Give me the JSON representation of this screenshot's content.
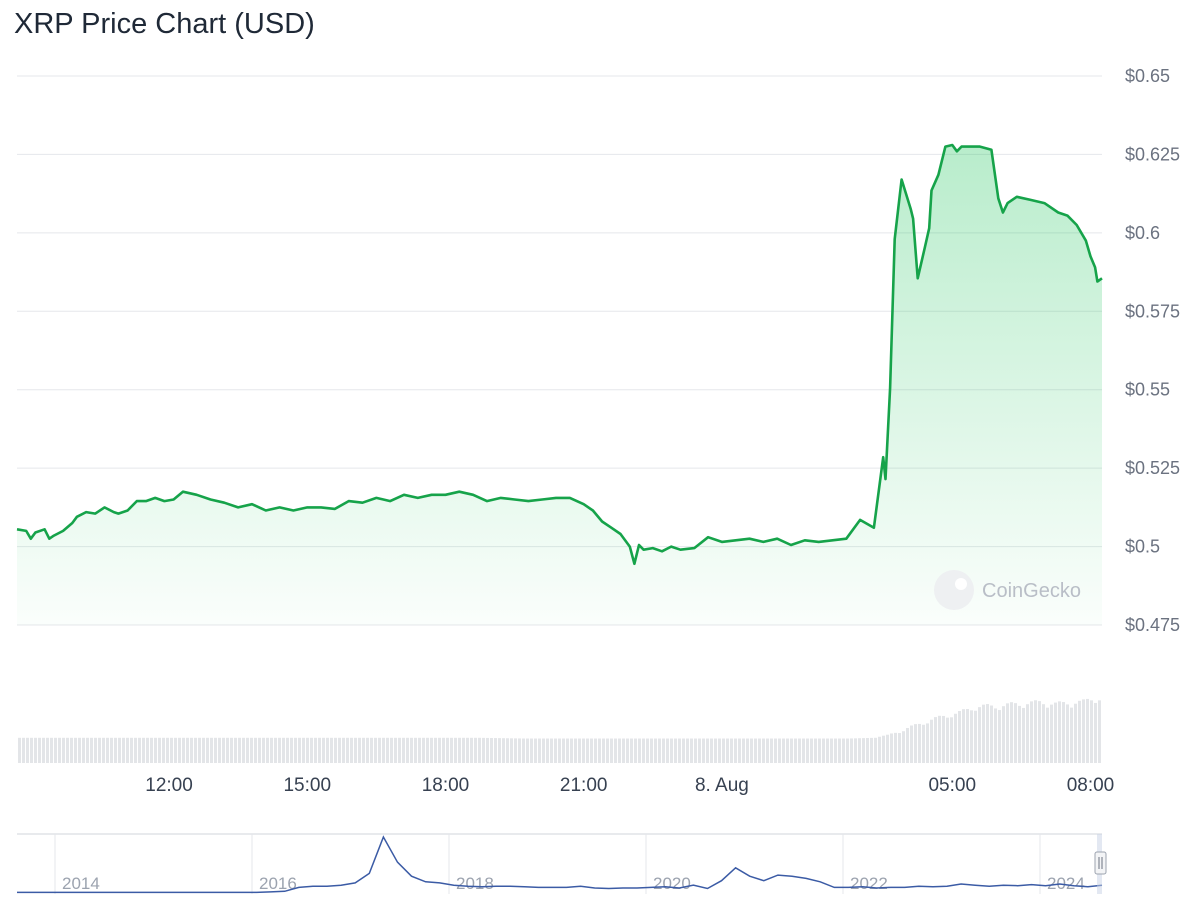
{
  "page": {
    "title": "XRP Price Chart (USD)"
  },
  "colors": {
    "line": "#16a34a",
    "fill": "#22c55e",
    "volume": "#e3e5e8",
    "navigator": "#3b5ba5"
  },
  "watermark": {
    "text": "CoinGecko"
  },
  "chart_data": {
    "type": "line",
    "title": "XRP Price Chart (USD)",
    "currency": "USD",
    "y_axis": {
      "range": [
        0.475,
        0.65
      ],
      "ticks": [
        {
          "value": 0.65,
          "label": "$0.65"
        },
        {
          "value": 0.625,
          "label": "$0.625"
        },
        {
          "value": 0.6,
          "label": "$0.6"
        },
        {
          "value": 0.575,
          "label": "$0.575"
        },
        {
          "value": 0.55,
          "label": "$0.55"
        },
        {
          "value": 0.525,
          "label": "$0.525"
        },
        {
          "value": 0.5,
          "label": "$0.5"
        },
        {
          "value": 0.475,
          "label": "$0.475"
        }
      ]
    },
    "x_axis": {
      "range_hours": [
        8.7,
        32.25
      ],
      "ticks": [
        {
          "value": 12,
          "label": "12:00"
        },
        {
          "value": 15,
          "label": "15:00"
        },
        {
          "value": 18,
          "label": "18:00"
        },
        {
          "value": 21,
          "label": "21:00"
        },
        {
          "value": 24,
          "label": "8. Aug"
        },
        {
          "value": 29,
          "label": "05:00"
        },
        {
          "value": 32,
          "label": "08:00"
        }
      ]
    },
    "grid": true,
    "legend": "none",
    "series": [
      {
        "x": [
          8.7,
          8.9,
          9.0,
          9.1,
          9.3,
          9.4,
          9.5,
          9.7,
          9.9,
          10.0,
          10.2,
          10.4,
          10.6,
          10.8,
          10.9,
          11.1,
          11.3,
          11.5,
          11.7,
          11.9,
          12.1,
          12.3,
          12.6,
          12.9,
          13.2,
          13.5,
          13.8,
          14.1,
          14.4,
          14.7,
          15.0,
          15.3,
          15.6,
          15.9,
          16.2,
          16.5,
          16.8,
          17.1,
          17.4,
          17.7,
          18.0,
          18.3,
          18.6,
          18.9,
          19.2,
          19.5,
          19.8,
          20.1,
          20.4,
          20.7,
          21.0,
          21.2,
          21.4,
          21.6,
          21.8,
          22.0,
          22.1,
          22.2,
          22.3,
          22.5,
          22.7,
          22.9,
          23.1,
          23.4,
          23.7,
          24.0,
          24.3,
          24.6,
          24.9,
          25.2,
          25.5,
          25.8,
          26.1,
          26.4,
          26.7,
          27.0,
          27.3,
          27.5,
          27.55,
          27.65,
          27.75,
          27.9,
          28.1,
          28.15,
          28.25,
          28.4,
          28.5,
          28.55,
          28.7,
          28.85,
          29.0,
          29.1,
          29.2,
          29.35,
          29.6,
          29.85,
          30.0,
          30.1,
          30.2,
          30.4,
          30.7,
          31.0,
          31.3,
          31.5,
          31.7,
          31.9,
          32.0,
          32.1,
          32.15,
          32.25
        ],
        "y": [
          0.5055,
          0.505,
          0.5025,
          0.5045,
          0.5055,
          0.5025,
          0.5035,
          0.505,
          0.5075,
          0.5095,
          0.511,
          0.5105,
          0.5125,
          0.511,
          0.5105,
          0.5115,
          0.5145,
          0.5145,
          0.5155,
          0.5145,
          0.515,
          0.5175,
          0.5165,
          0.515,
          0.514,
          0.5125,
          0.5135,
          0.5115,
          0.5125,
          0.5115,
          0.5125,
          0.5125,
          0.512,
          0.5145,
          0.514,
          0.5155,
          0.5145,
          0.5165,
          0.5155,
          0.5165,
          0.5165,
          0.5175,
          0.5165,
          0.5145,
          0.5155,
          0.515,
          0.5145,
          0.515,
          0.5155,
          0.5155,
          0.5135,
          0.5115,
          0.508,
          0.506,
          0.504,
          0.5,
          0.4945,
          0.5005,
          0.499,
          0.4995,
          0.4985,
          0.5,
          0.499,
          0.4995,
          0.503,
          0.5015,
          0.502,
          0.5025,
          0.5015,
          0.5025,
          0.5005,
          0.502,
          0.5015,
          0.502,
          0.5025,
          0.5085,
          0.506,
          0.5285,
          0.5215,
          0.5505,
          0.598,
          0.617,
          0.6075,
          0.6045,
          0.5855,
          0.595,
          0.6015,
          0.6135,
          0.6185,
          0.6275,
          0.628,
          0.626,
          0.6275,
          0.6275,
          0.6275,
          0.6265,
          0.611,
          0.6065,
          0.6095,
          0.6115,
          0.6105,
          0.6095,
          0.6065,
          0.6055,
          0.6025,
          0.5975,
          0.5925,
          0.589,
          0.5845,
          0.5855
        ]
      }
    ],
    "volume_series": {
      "x": [
        8.7,
        9.7,
        10.7,
        11.7,
        12.7,
        13.7,
        14.7,
        15.7,
        16.7,
        17.7,
        18.7,
        19.7,
        20.7,
        21.7,
        22.7,
        23.7,
        24.7,
        25.7,
        26.7,
        27.3,
        27.6,
        27.9,
        28.2,
        28.5,
        28.8,
        29.1,
        29.4,
        29.7,
        30.0,
        30.3,
        30.6,
        30.9,
        31.2,
        31.5,
        31.8,
        32.1,
        32.25
      ],
      "relative": [
        0.35,
        0.35,
        0.35,
        0.35,
        0.35,
        0.35,
        0.35,
        0.35,
        0.35,
        0.35,
        0.35,
        0.34,
        0.34,
        0.34,
        0.34,
        0.34,
        0.34,
        0.34,
        0.34,
        0.35,
        0.4,
        0.48,
        0.55,
        0.62,
        0.68,
        0.72,
        0.8,
        0.82,
        0.82,
        0.85,
        0.86,
        0.88,
        0.85,
        0.87,
        0.88,
        0.95,
        0.9
      ]
    },
    "navigator": {
      "ticks": [
        "2014",
        "2016",
        "2018",
        "2020",
        "2022",
        "2024"
      ],
      "relative_values": [
        0.01,
        0.01,
        0.01,
        0.01,
        0.01,
        0.01,
        0.01,
        0.01,
        0.01,
        0.01,
        0.01,
        0.01,
        0.01,
        0.01,
        0.01,
        0.01,
        0.01,
        0.01,
        0.02,
        0.03,
        0.1,
        0.12,
        0.12,
        0.14,
        0.18,
        0.35,
        1.0,
        0.55,
        0.3,
        0.2,
        0.18,
        0.14,
        0.12,
        0.11,
        0.12,
        0.12,
        0.11,
        0.1,
        0.1,
        0.1,
        0.12,
        0.09,
        0.08,
        0.09,
        0.09,
        0.1,
        0.11,
        0.09,
        0.14,
        0.08,
        0.22,
        0.45,
        0.3,
        0.22,
        0.32,
        0.3,
        0.26,
        0.2,
        0.1,
        0.1,
        0.11,
        0.09,
        0.1,
        0.1,
        0.12,
        0.11,
        0.12,
        0.16,
        0.14,
        0.12,
        0.14,
        0.13,
        0.15,
        0.13,
        0.16,
        0.13,
        0.11,
        0.14
      ]
    }
  }
}
